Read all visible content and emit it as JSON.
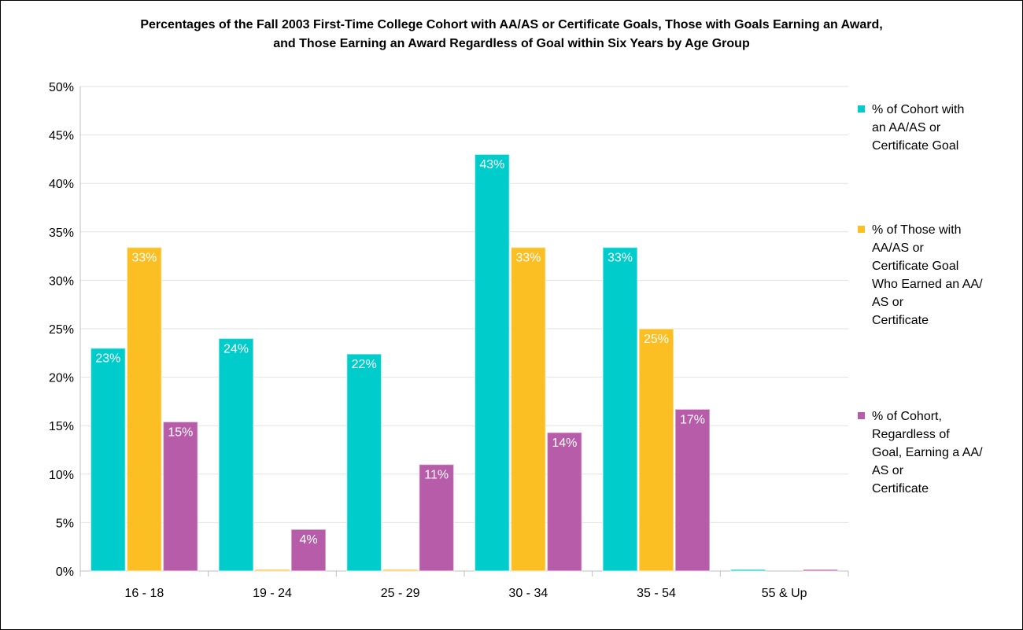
{
  "chart_data": {
    "type": "bar",
    "title_lines": [
      "Percentages of the Fall 2003 First-Time College Cohort with AA/AS or Certificate Goals, Those with Goals Earning an Award,",
      "and Those Earning an Award Regardless of Goal within Six Years by Age Group"
    ],
    "categories": [
      "16 - 18",
      "19 - 24",
      "25 - 29",
      "30 - 34",
      "35 - 54",
      "55 & Up"
    ],
    "ylim": [
      0,
      50
    ],
    "yticks": [
      0,
      5,
      10,
      15,
      20,
      25,
      30,
      35,
      40,
      45,
      50
    ],
    "ytick_labels": [
      "0%",
      "5%",
      "10%",
      "15%",
      "20%",
      "25%",
      "30%",
      "35%",
      "40%",
      "45%",
      "50%"
    ],
    "grid": true,
    "legend_position": "right",
    "series": [
      {
        "name_lines": [
          "% of Cohort with",
          "an AA/AS or",
          "Certificate Goal"
        ],
        "color": "#00cccc",
        "values": [
          23,
          24,
          22.4,
          43,
          33.4,
          0
        ],
        "labels": [
          "23%",
          "24%",
          "22%",
          "43%",
          "33%",
          ""
        ]
      },
      {
        "name_lines": [
          "% of Those with",
          "AA/AS or",
          "Certificate Goal",
          "Who Earned an AA/",
          "AS or",
          "Certificate"
        ],
        "color": "#fbbf24",
        "values": [
          33.4,
          0,
          0,
          33.4,
          25,
          null
        ],
        "labels": [
          "33%",
          "",
          "",
          "33%",
          "25%",
          ""
        ]
      },
      {
        "name_lines": [
          "% of Cohort,",
          "Regardless of",
          "Goal, Earning a AA/",
          "AS or",
          "Certificate"
        ],
        "color": "#b65ca8",
        "values": [
          15.4,
          4.3,
          11,
          14.3,
          16.7,
          0
        ],
        "labels": [
          "15%",
          "4%",
          "11%",
          "14%",
          "17%",
          ""
        ]
      }
    ]
  }
}
